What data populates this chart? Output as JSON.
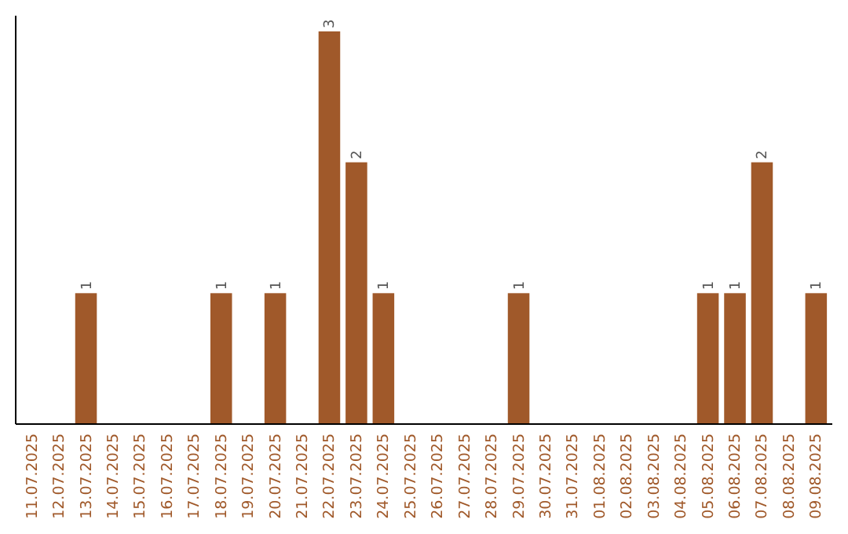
{
  "chart_data": {
    "type": "bar",
    "categories": [
      "11.07.2025",
      "12.07.2025",
      "13.07.2025",
      "14.07.2025",
      "15.07.2025",
      "16.07.2025",
      "17.07.2025",
      "18.07.2025",
      "19.07.2025",
      "20.07.2025",
      "21.07.2025",
      "22.07.2025",
      "23.07.2025",
      "24.07.2025",
      "25.07.2025",
      "26.07.2025",
      "27.07.2025",
      "28.07.2025",
      "29.07.2025",
      "30.07.2025",
      "31.07.2025",
      "01.08.2025",
      "02.08.2025",
      "03.08.2025",
      "04.08.2025",
      "05.08.2025",
      "06.08.2025",
      "07.08.2025",
      "08.08.2025",
      "09.08.2025"
    ],
    "values": [
      0,
      0,
      1,
      0,
      0,
      0,
      0,
      1,
      0,
      1,
      0,
      3,
      2,
      1,
      0,
      0,
      0,
      0,
      1,
      0,
      0,
      0,
      0,
      0,
      0,
      1,
      1,
      2,
      0,
      1
    ],
    "value_labels": [
      null,
      null,
      "1",
      null,
      null,
      null,
      null,
      "1",
      null,
      "1",
      null,
      "3",
      "2",
      "1",
      null,
      null,
      null,
      null,
      "1",
      null,
      null,
      null,
      null,
      null,
      null,
      "1",
      "1",
      "2",
      null,
      "1"
    ],
    "color": "#a0592a",
    "grid": false
  }
}
